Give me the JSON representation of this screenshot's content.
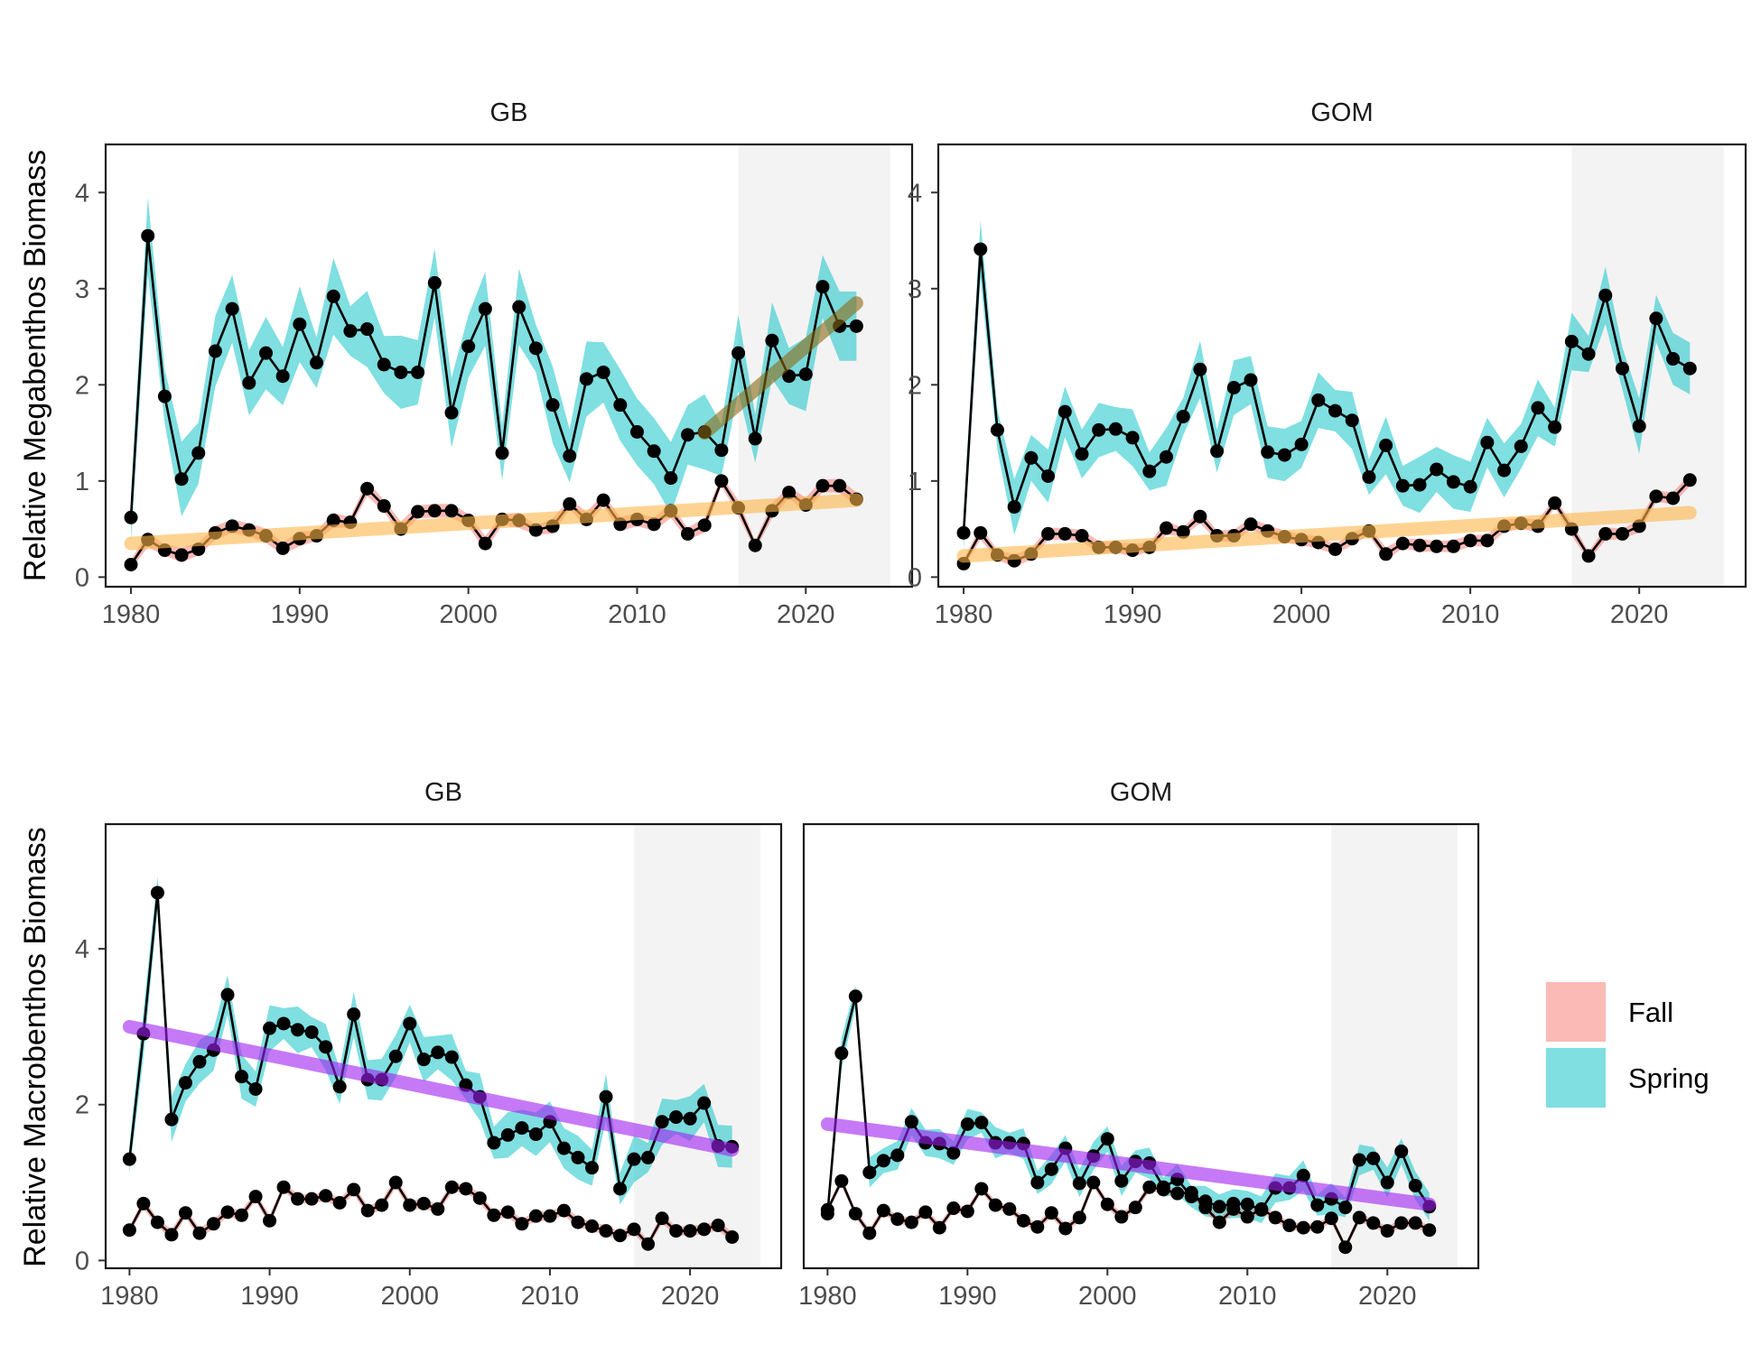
{
  "colors": {
    "fall_ribbon": "#F8766D",
    "spring_ribbon": "#00BFC4",
    "line": "#000000",
    "point": "#000000",
    "trend_up": "#FDB64A",
    "trend_spring_up": "#8B6914",
    "trend_down": "#A020F0",
    "recent_shade": "#EBEBEB",
    "panel_border": "#1a1a1a"
  },
  "legend": {
    "items": [
      {
        "label": "Fall",
        "color": "#F8766D"
      },
      {
        "label": "Spring",
        "color": "#00BFC4"
      }
    ]
  },
  "chart_data": [
    {
      "type": "line",
      "row_title": "Relative Megabenthos Biomass",
      "panels": [
        {
          "title": "GB",
          "xlim": [
            1978.5,
            2026.3
          ],
          "ylim": [
            -0.1,
            4.5
          ],
          "xticks": [
            1980,
            1990,
            2000,
            2010,
            2020
          ],
          "yticks": [
            0,
            1,
            2,
            3,
            4
          ],
          "shade_from": 2016,
          "shade_to": 2025,
          "years": [
            1980,
            1981,
            1982,
            1983,
            1984,
            1985,
            1986,
            1987,
            1988,
            1989,
            1990,
            1991,
            1992,
            1993,
            1994,
            1995,
            1996,
            1997,
            1998,
            1999,
            2000,
            2001,
            2002,
            2003,
            2004,
            2005,
            2006,
            2007,
            2008,
            2009,
            2010,
            2011,
            2012,
            2013,
            2014,
            2015,
            2016,
            2017,
            2018,
            2019,
            2020,
            2021,
            2022,
            2023
          ],
          "series": [
            {
              "name": "Spring",
              "values": [
                0.62,
                3.55,
                1.88,
                1.02,
                1.29,
                2.35,
                2.79,
                2.02,
                2.33,
                2.09,
                2.63,
                2.23,
                2.92,
                2.56,
                2.58,
                2.21,
                2.13,
                2.13,
                3.06,
                1.71,
                2.4,
                2.79,
                1.29,
                2.81,
                2.38,
                1.79,
                1.26,
                2.06,
                2.13,
                1.79,
                1.51,
                1.31,
                1.03,
                1.48,
                1.51,
                1.32,
                2.33,
                1.44,
                2.46,
                2.09,
                2.11,
                3.02,
                2.61,
                2.61
              ],
              "spread": 0.4
            },
            {
              "name": "Fall",
              "values": [
                0.13,
                0.39,
                0.28,
                0.23,
                0.29,
                0.46,
                0.53,
                0.49,
                0.43,
                0.3,
                0.4,
                0.43,
                0.59,
                0.57,
                0.92,
                0.74,
                0.5,
                0.68,
                0.69,
                0.69,
                0.59,
                0.35,
                0.6,
                0.59,
                0.49,
                0.53,
                0.76,
                0.6,
                0.8,
                0.55,
                0.6,
                0.55,
                0.69,
                0.45,
                0.54,
                1.0,
                0.72,
                0.33,
                0.69,
                0.88,
                0.75,
                0.95,
                0.95,
                0.81
              ],
              "spread": 0.08
            }
          ],
          "trends": [
            {
              "series": "Fall",
              "from": [
                1980,
                0.35
              ],
              "to": [
                2023,
                0.8
              ],
              "color": "#FDB64A"
            },
            {
              "series": "Spring",
              "from": [
                2014,
                1.5
              ],
              "to": [
                2023,
                2.85
              ],
              "color": "#8B6914"
            }
          ]
        },
        {
          "title": "GOM",
          "xlim": [
            1978.5,
            2026.3
          ],
          "ylim": [
            -0.1,
            4.5
          ],
          "xticks": [
            1980,
            1990,
            2000,
            2010,
            2020
          ],
          "yticks": [
            0,
            1,
            2,
            3,
            4
          ],
          "shade_from": 2016,
          "shade_to": 2025,
          "years": [
            1980,
            1981,
            1982,
            1983,
            1984,
            1985,
            1986,
            1987,
            1988,
            1989,
            1990,
            1991,
            1992,
            1993,
            1994,
            1995,
            1996,
            1997,
            1998,
            1999,
            2000,
            2001,
            2002,
            2003,
            2004,
            2005,
            2006,
            2007,
            2008,
            2009,
            2010,
            2011,
            2012,
            2013,
            2014,
            2015,
            2016,
            2017,
            2018,
            2019,
            2020,
            2021,
            2022,
            2023
          ],
          "series": [
            {
              "name": "Spring",
              "values": [
                0.46,
                3.41,
                1.53,
                0.73,
                1.24,
                1.05,
                1.72,
                1.28,
                1.53,
                1.54,
                1.45,
                1.1,
                1.25,
                1.67,
                2.16,
                1.31,
                1.97,
                2.05,
                1.3,
                1.27,
                1.38,
                1.84,
                1.73,
                1.63,
                1.04,
                1.37,
                0.95,
                0.96,
                1.12,
                0.99,
                0.94,
                1.4,
                1.11,
                1.36,
                1.76,
                1.56,
                2.45,
                2.32,
                2.93,
                2.17,
                1.57,
                2.69,
                2.27,
                2.17
              ],
              "spread": 0.3
            },
            {
              "name": "Fall",
              "values": [
                0.14,
                0.46,
                0.23,
                0.17,
                0.24,
                0.45,
                0.45,
                0.43,
                0.31,
                0.31,
                0.28,
                0.31,
                0.51,
                0.47,
                0.63,
                0.43,
                0.43,
                0.55,
                0.48,
                0.42,
                0.39,
                0.36,
                0.29,
                0.4,
                0.48,
                0.24,
                0.35,
                0.33,
                0.32,
                0.32,
                0.38,
                0.38,
                0.53,
                0.56,
                0.53,
                0.77,
                0.5,
                0.22,
                0.45,
                0.45,
                0.53,
                0.84,
                0.82,
                1.01
              ],
              "spread": 0.07
            }
          ],
          "trends": [
            {
              "series": "Fall",
              "from": [
                1980,
                0.22
              ],
              "to": [
                2023,
                0.67
              ],
              "color": "#FDB64A"
            }
          ]
        }
      ]
    },
    {
      "type": "line",
      "row_title": "Relative Macrobenthos Biomass",
      "panels": [
        {
          "title": "GB",
          "xlim": [
            1978.3,
            2026.5
          ],
          "ylim": [
            -0.1,
            5.6
          ],
          "xticks": [
            1980,
            1990,
            2000,
            2010,
            2020
          ],
          "yticks": [
            0,
            2,
            4
          ],
          "shade_from": 2016,
          "shade_to": 2025,
          "years": [
            1980,
            1981,
            1982,
            1983,
            1984,
            1985,
            1986,
            1987,
            1988,
            1989,
            1990,
            1991,
            1992,
            1993,
            1994,
            1995,
            1996,
            1997,
            1998,
            1999,
            2000,
            2001,
            2002,
            2003,
            2004,
            2005,
            2006,
            2007,
            2008,
            2009,
            2010,
            2011,
            2012,
            2013,
            2014,
            2015,
            2016,
            2017,
            2018,
            2019,
            2020,
            2021,
            2022,
            2023
          ],
          "series": [
            {
              "name": "Spring",
              "values": [
                1.3,
                2.91,
                4.72,
                1.81,
                2.28,
                2.55,
                2.7,
                3.41,
                2.36,
                2.2,
                2.98,
                3.04,
                2.96,
                2.93,
                2.74,
                2.23,
                3.16,
                2.32,
                2.32,
                2.62,
                3.04,
                2.58,
                2.67,
                2.61,
                2.25,
                2.1,
                1.51,
                1.61,
                1.7,
                1.62,
                1.78,
                1.44,
                1.32,
                1.19,
                2.1,
                0.92,
                1.3,
                1.32,
                1.78,
                1.84,
                1.82,
                2.02,
                1.47,
                1.46
              ],
              "spread": 0.3
            },
            {
              "name": "Fall",
              "values": [
                0.39,
                0.73,
                0.49,
                0.33,
                0.61,
                0.35,
                0.47,
                0.62,
                0.58,
                0.82,
                0.51,
                0.94,
                0.79,
                0.79,
                0.83,
                0.74,
                0.91,
                0.64,
                0.71,
                1.0,
                0.71,
                0.73,
                0.66,
                0.94,
                0.92,
                0.8,
                0.58,
                0.62,
                0.47,
                0.57,
                0.57,
                0.64,
                0.49,
                0.44,
                0.38,
                0.32,
                0.4,
                0.21,
                0.54,
                0.38,
                0.38,
                0.4,
                0.45,
                0.3
              ],
              "spread": 0.07
            }
          ],
          "trends": [
            {
              "series": "Spring",
              "from": [
                1980,
                3.0
              ],
              "to": [
                2023,
                1.42
              ],
              "color": "#A020F0"
            }
          ]
        },
        {
          "title": "GOM",
          "xlim": [
            1978.3,
            2026.5
          ],
          "ylim": [
            -0.1,
            5.6
          ],
          "xticks": [
            1980,
            1990,
            2000,
            2010,
            2020
          ],
          "yticks": [],
          "shade_from": 2016,
          "shade_to": 2025,
          "years": [
            1980,
            1981,
            1982,
            1983,
            1984,
            1985,
            1986,
            1987,
            1988,
            1989,
            1990,
            1991,
            1992,
            1993,
            1994,
            1995,
            1996,
            1997,
            1998,
            1999,
            2000,
            2001,
            2002,
            2003,
            2004,
            2005,
            2006,
            2007,
            2008,
            2009,
            2010,
            2011,
            2012,
            2013,
            2014,
            2015,
            2016,
            2017,
            2018,
            2019,
            2020,
            2021,
            2022,
            2023
          ],
          "series": [
            {
              "name": "Spring",
              "values": [
                0.6,
                2.66,
                3.39,
                1.13,
                1.28,
                1.35,
                1.78,
                1.51,
                1.5,
                1.38,
                1.75,
                1.77,
                1.51,
                1.51,
                1.5,
                1.0,
                1.17,
                1.44,
                0.99,
                1.34,
                1.56,
                1.02,
                1.27,
                1.25,
                0.94,
                1.04,
                0.82,
                0.76,
                0.69,
                0.73,
                0.72,
                0.65,
                0.93,
                0.93,
                1.09,
                0.71,
                0.79,
                0.68,
                1.29,
                1.31,
                1.0,
                1.4,
                0.96,
                0.69
              ],
              "spread": 0.2
            },
            {
              "name": "Fall",
              "values": [
                0.65,
                1.02,
                0.6,
                0.35,
                0.64,
                0.53,
                0.49,
                0.62,
                0.42,
                0.67,
                0.63,
                0.92,
                0.71,
                0.66,
                0.51,
                0.43,
                0.61,
                0.41,
                0.55,
                1.0,
                0.72,
                0.56,
                0.68,
                0.94,
                0.91,
                0.86,
                0.87,
                0.68,
                0.49,
                0.66,
                0.56,
                0.66,
                0.55,
                0.45,
                0.42,
                0.43,
                0.54,
                0.17,
                0.55,
                0.48,
                0.38,
                0.48,
                0.48,
                0.39
              ],
              "spread": 0.06
            }
          ],
          "trends": [
            {
              "series": "Spring",
              "from": [
                1980,
                1.75
              ],
              "to": [
                2023,
                0.72
              ],
              "color": "#A020F0"
            }
          ]
        }
      ]
    }
  ]
}
